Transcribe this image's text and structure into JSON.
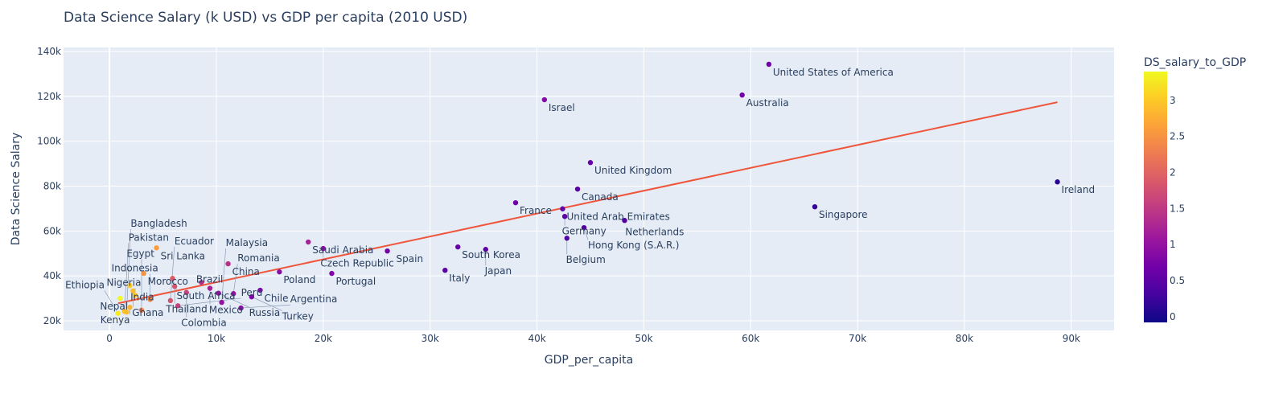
{
  "chart_data": {
    "type": "scatter",
    "title": "Data Science Salary (k USD) vs GDP per capita (2010 USD)",
    "xlabel": "GDP_per_capita",
    "ylabel": "Data Science Salary",
    "xlim": [
      -4300,
      94000
    ],
    "ylim": [
      15700,
      141800
    ],
    "grid": true,
    "x_ticks": [
      0,
      10000,
      20000,
      30000,
      40000,
      50000,
      60000,
      70000,
      80000,
      90000
    ],
    "x_tick_labels": [
      "0",
      "10k",
      "20k",
      "30k",
      "40k",
      "50k",
      "60k",
      "70k",
      "80k",
      "90k"
    ],
    "y_ticks": [
      20000,
      40000,
      60000,
      80000,
      100000,
      120000,
      140000
    ],
    "y_tick_labels": [
      "20k",
      "40k",
      "60k",
      "80k",
      "100k",
      "120k",
      "140k"
    ],
    "colorbar": {
      "title": "DS_salary_to_GDP",
      "range": [
        -0.08,
        3.4
      ],
      "ticks": [
        0,
        0.5,
        1,
        1.5,
        2,
        2.5,
        3
      ],
      "tick_labels": [
        "0",
        "0.5",
        "1",
        "1.5",
        "2",
        "2.5",
        "3"
      ],
      "colorscale": [
        "#0d0887",
        "#46039f",
        "#7201a8",
        "#9c179e",
        "#bd3786",
        "#d8576b",
        "#ed7953",
        "#fb9f3a",
        "#fdca26",
        "#f0f921"
      ]
    },
    "trendline": {
      "x": [
        800,
        88700
      ],
      "y": [
        27800,
        117400
      ],
      "color": "#ef553b"
    },
    "points": [
      {
        "label": "United States of America",
        "x": 61700,
        "y": 134300,
        "c": 0.65
      },
      {
        "label": "Australia",
        "x": 59200,
        "y": 120600,
        "c": 0.7
      },
      {
        "label": "Israel",
        "x": 40700,
        "y": 118500,
        "c": 0.85
      },
      {
        "label": "United Kingdom",
        "x": 45000,
        "y": 90500,
        "c": 0.6
      },
      {
        "label": "Ireland",
        "x": 88700,
        "y": 81900,
        "c": 0.1
      },
      {
        "label": "Canada",
        "x": 43800,
        "y": 78700,
        "c": 0.5
      },
      {
        "label": "France",
        "x": 38000,
        "y": 72600,
        "c": 0.7
      },
      {
        "label": "Singapore",
        "x": 66000,
        "y": 70800,
        "c": 0.2
      },
      {
        "label": "United Arab Emirates",
        "x": 42400,
        "y": 69900,
        "c": 0.55
      },
      {
        "label": "Germany",
        "x": 42600,
        "y": 66500,
        "c": 0.5
      },
      {
        "label": "Netherlands",
        "x": 48200,
        "y": 64700,
        "c": 0.4
      },
      {
        "label": "Hong Kong (S.A.R.)",
        "x": 44400,
        "y": 61500,
        "c": 0.4
      },
      {
        "label": "Belgium",
        "x": 42800,
        "y": 56800,
        "c": 0.4
      },
      {
        "label": "Saudi Arabia",
        "x": 18600,
        "y": 55100,
        "c": 1.2
      },
      {
        "label": "South Korea",
        "x": 32600,
        "y": 52900,
        "c": 0.6
      },
      {
        "label": "Sri Lanka",
        "x": 4400,
        "y": 52500,
        "c": 2.6
      },
      {
        "label": "Czech Republic",
        "x": 20000,
        "y": 52200,
        "c": 0.9
      },
      {
        "label": "Japan",
        "x": 35200,
        "y": 51800,
        "c": 0.5
      },
      {
        "label": "Spain",
        "x": 26000,
        "y": 51100,
        "c": 0.7
      },
      {
        "label": "China",
        "x": 11100,
        "y": 45400,
        "c": 1.4
      },
      {
        "label": "Italy",
        "x": 31400,
        "y": 42500,
        "c": 0.5
      },
      {
        "label": "Poland",
        "x": 15900,
        "y": 41800,
        "c": 0.9
      },
      {
        "label": "Morocco",
        "x": 3200,
        "y": 41100,
        "c": 2.5
      },
      {
        "label": "Portugal",
        "x": 20800,
        "y": 41100,
        "c": 0.8
      },
      {
        "label": "South Africa",
        "x": 5900,
        "y": 38900,
        "c": 1.9
      },
      {
        "label": "Brazil",
        "x": 8600,
        "y": 37100,
        "c": 1.4
      },
      {
        "label": "India",
        "x": 1900,
        "y": 35700,
        "c": 3.0
      },
      {
        "label": "Thailand",
        "x": 6100,
        "y": 35300,
        "c": 1.8
      },
      {
        "label": "Mexico",
        "x": 9400,
        "y": 34500,
        "c": 1.2
      },
      {
        "label": "Chile",
        "x": 14100,
        "y": 33600,
        "c": 0.8
      },
      {
        "label": "Ghana",
        "x": 2200,
        "y": 33300,
        "c": 2.9
      },
      {
        "label": "Colombia",
        "x": 7200,
        "y": 32600,
        "c": 1.6
      },
      {
        "label": "Russia",
        "x": 10200,
        "y": 32300,
        "c": 1.0
      },
      {
        "label": "Romania",
        "x": 11600,
        "y": 32100,
        "c": 1.0
      },
      {
        "label": "Nigeria",
        "x": 2400,
        "y": 31400,
        "c": 3.0
      },
      {
        "label": "Turkey",
        "x": 13300,
        "y": 30700,
        "c": 0.8
      },
      {
        "label": "Nepal",
        "x": 1000,
        "y": 30000,
        "c": 3.4
      },
      {
        "label": "Indonesia",
        "x": 3800,
        "y": 29500,
        "c": 2.4
      },
      {
        "label": "Ecuador",
        "x": 5700,
        "y": 29000,
        "c": 1.8
      },
      {
        "label": "Malaysia",
        "x": 10500,
        "y": 28200,
        "c": 1.0
      },
      {
        "label": "Peru",
        "x": 6400,
        "y": 26700,
        "c": 1.6
      },
      {
        "label": "Kenya",
        "x": 1900,
        "y": 26000,
        "c": 2.8
      },
      {
        "label": "Argentina",
        "x": 12300,
        "y": 25700,
        "c": 0.9
      },
      {
        "label": "Egypt",
        "x": 3000,
        "y": 24700,
        "c": 2.3
      },
      {
        "label": "Ethiopia",
        "x": 800,
        "y": 23300,
        "c": 3.3
      },
      {
        "label": "Pakistan",
        "x": 1400,
        "y": 24200,
        "c": 2.9
      },
      {
        "label": "Bangladesh",
        "x": 1600,
        "y": 23900,
        "c": 2.9
      }
    ]
  }
}
